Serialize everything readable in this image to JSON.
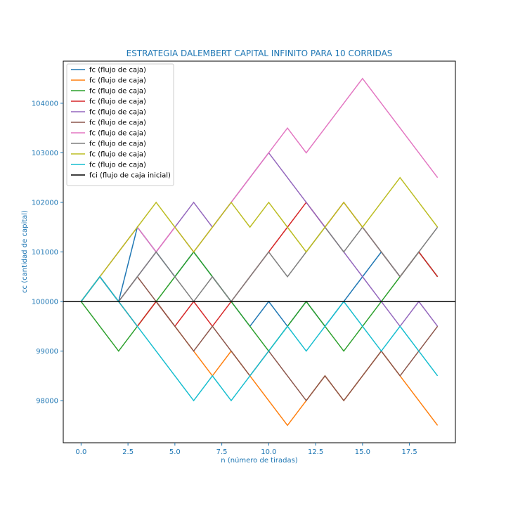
{
  "chart_data": {
    "type": "line",
    "title": "ESTRATEGIA DALEMBERT CAPITAL INFINITO PARA 10 CORRIDAS",
    "xlabel": "n (número de tiradas)",
    "ylabel": "cc (cantidad de capital)",
    "xlim": [
      -0.95,
      19.95
    ],
    "ylim": [
      97150,
      104850
    ],
    "x_ticks": [
      0.0,
      2.5,
      5.0,
      7.5,
      10.0,
      12.5,
      15.0,
      17.5
    ],
    "x_tick_labels": [
      "0.0",
      "2.5",
      "5.0",
      "7.5",
      "10.0",
      "12.5",
      "15.0",
      "17.5"
    ],
    "y_ticks": [
      98000,
      99000,
      100000,
      101000,
      102000,
      103000,
      104000
    ],
    "y_tick_labels": [
      "98000",
      "99000",
      "100000",
      "101000",
      "102000",
      "103000",
      "104000"
    ],
    "grid": false,
    "legend_position": "top-left",
    "text_color": "#1f77b4",
    "x": [
      0,
      1,
      2,
      3,
      4,
      5,
      6,
      7,
      8,
      9,
      10,
      11,
      12,
      13,
      14,
      15,
      16,
      17,
      18,
      19
    ],
    "series": [
      {
        "name": "fc (flujo de caja)",
        "color": "#1f77b4",
        "values": [
          100000,
          100500,
          100000,
          101500,
          101000,
          100500,
          101000,
          100500,
          100000,
          99500,
          100000,
          99500,
          100000,
          99500,
          100000,
          100500,
          101000,
          100500,
          101000,
          100500
        ]
      },
      {
        "name": "fc (flujo de caja)",
        "color": "#ff7f0e",
        "values": [
          100000,
          100500,
          100000,
          99500,
          100000,
          99500,
          99000,
          98500,
          99000,
          98500,
          98000,
          97500,
          98000,
          98500,
          98000,
          98500,
          99000,
          98500,
          98000,
          97500
        ]
      },
      {
        "name": "fc (flujo de caja)",
        "color": "#2ca02c",
        "values": [
          100000,
          99500,
          99000,
          99500,
          100000,
          100500,
          101000,
          100500,
          100000,
          99500,
          99000,
          99500,
          100000,
          99500,
          99000,
          99500,
          100000,
          100500,
          101000,
          100500
        ]
      },
      {
        "name": "fc (flujo de caja)",
        "color": "#d62728",
        "values": [
          100000,
          100500,
          100000,
          99500,
          100000,
          99500,
          100000,
          99500,
          100000,
          100500,
          101000,
          101500,
          102000,
          101500,
          102000,
          101500,
          101000,
          100500,
          101000,
          100500
        ]
      },
      {
        "name": "fc (flujo de caja)",
        "color": "#9467bd",
        "values": [
          100000,
          100500,
          100000,
          100500,
          101000,
          101500,
          102000,
          101500,
          102000,
          102500,
          103000,
          102500,
          102000,
          101500,
          101000,
          100500,
          100000,
          99500,
          100000,
          99500
        ]
      },
      {
        "name": "fc (flujo de caja)",
        "color": "#8c564b",
        "values": [
          100000,
          100500,
          100000,
          100500,
          100000,
          99500,
          99000,
          99500,
          99000,
          98500,
          99000,
          98500,
          98000,
          98500,
          98000,
          98500,
          99000,
          98500,
          99000,
          99500
        ]
      },
      {
        "name": "fc (flujo de caja)",
        "color": "#e377c2",
        "values": [
          100000,
          100500,
          101000,
          101500,
          101000,
          101500,
          101000,
          101500,
          102000,
          102500,
          103000,
          103500,
          103000,
          103500,
          104000,
          104500,
          104000,
          103500,
          103000,
          102500
        ]
      },
      {
        "name": "fc (flujo de caja)",
        "color": "#7f7f7f",
        "values": [
          100000,
          100500,
          100000,
          100500,
          101000,
          100500,
          100000,
          100500,
          100000,
          100500,
          101000,
          100500,
          101000,
          101500,
          101000,
          101500,
          101000,
          100500,
          101000,
          101500
        ]
      },
      {
        "name": "fc (flujo de caja)",
        "color": "#bcbd22",
        "values": [
          100000,
          100500,
          101000,
          101500,
          102000,
          101500,
          101000,
          101500,
          102000,
          101500,
          102000,
          101500,
          101000,
          101500,
          102000,
          101500,
          102000,
          102500,
          102000,
          101500
        ]
      },
      {
        "name": "fc (flujo de caja)",
        "color": "#17becf",
        "values": [
          100000,
          100500,
          100000,
          99500,
          99000,
          98500,
          98000,
          98500,
          98000,
          98500,
          99000,
          99500,
          99000,
          99500,
          100000,
          99500,
          99000,
          99500,
          99000,
          98500
        ]
      }
    ],
    "reference_line": {
      "name": "fci (flujo de caja inicial)",
      "color": "#000000",
      "value": 100000
    }
  }
}
